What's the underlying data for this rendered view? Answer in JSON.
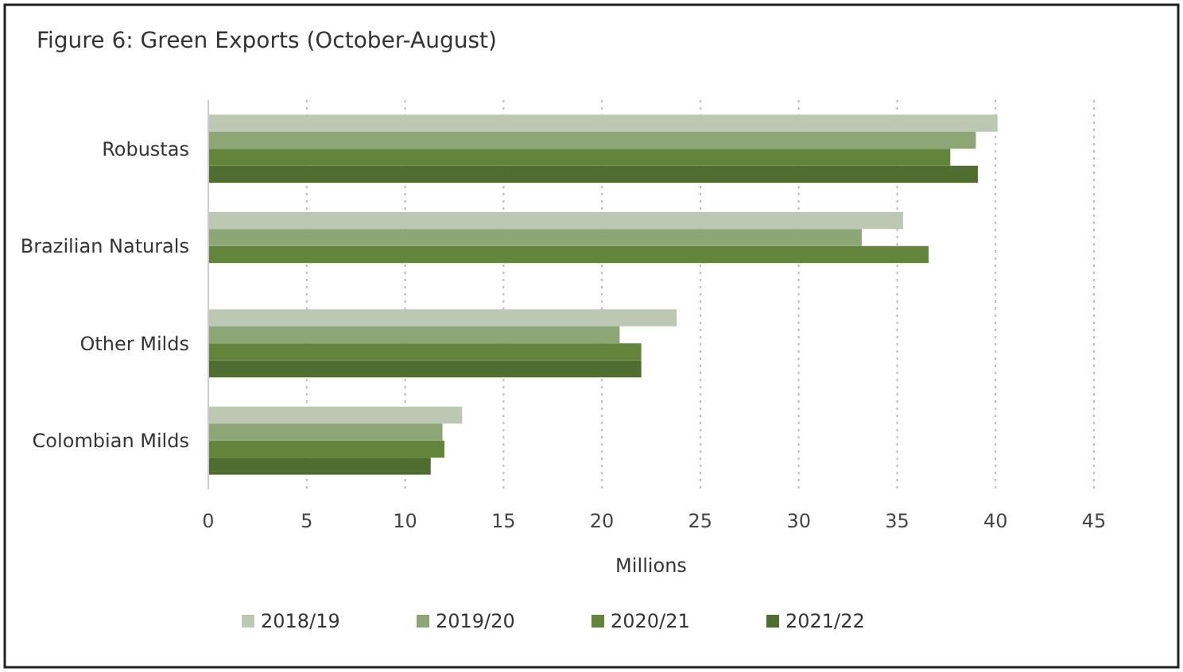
{
  "chart_data": {
    "type": "bar",
    "orientation": "horizontal",
    "title": "Figure 6: Green Exports (October-August)",
    "xlabel": "Millions",
    "categories": [
      "Robustas",
      "Brazilian Naturals",
      "Other Milds",
      "Colombian Milds"
    ],
    "series": [
      {
        "name": "2018/19",
        "color": "#bcc8b2",
        "values": [
          40.1,
          35.3,
          23.8,
          12.9
        ]
      },
      {
        "name": "2019/20",
        "color": "#8ca676",
        "values": [
          39.0,
          33.2,
          20.9,
          11.9
        ]
      },
      {
        "name": "2020/21",
        "color": "#62853b",
        "values": [
          37.7,
          36.6,
          22.0,
          12.0
        ]
      },
      {
        "name": "2021/22",
        "color": "#4f6d2f",
        "values": [
          39.1,
          null,
          22.0,
          11.3
        ]
      }
    ],
    "xlim": [
      0,
      45
    ],
    "xticks": [
      0,
      5,
      10,
      15,
      20,
      25,
      30,
      35,
      40,
      45
    ],
    "grid": "x",
    "legend": "bottom"
  }
}
